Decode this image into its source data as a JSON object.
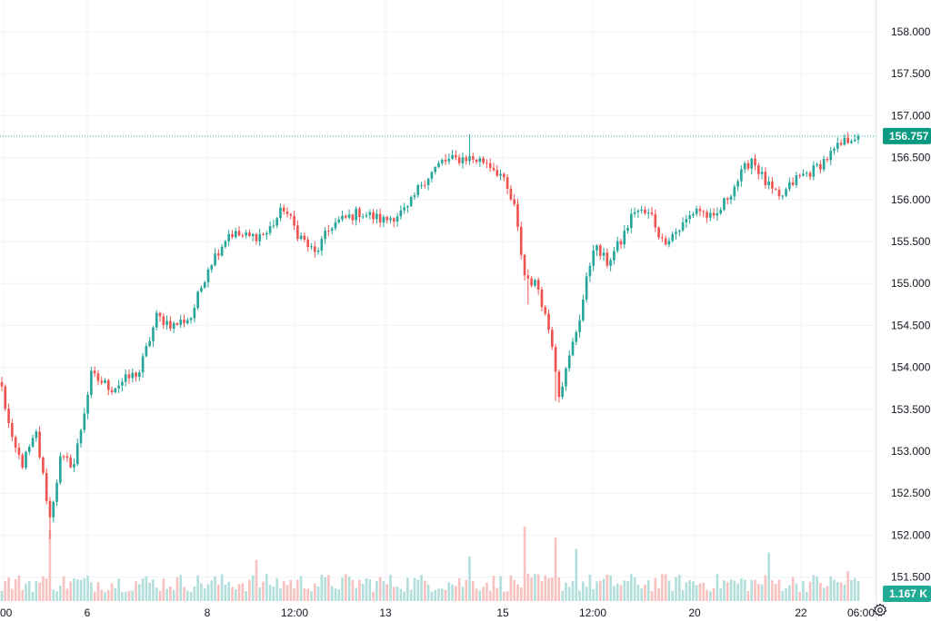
{
  "colors": {
    "up": "#26a69a",
    "down": "#ef5350",
    "up_volume": "#b2dfdb",
    "down_volume": "#f7c1bf",
    "grid": "#f0f3fa",
    "last_price_badge": "#089981",
    "last_price_line": "#22ab94",
    "text": "#131722"
  },
  "icons": {
    "settings": "gear-icon"
  },
  "chart_data": {
    "type": "candlestick",
    "title": "",
    "y_axis": {
      "position": "right",
      "ticks": [
        "158.000",
        "157.500",
        "157.000",
        "156.500",
        "156.000",
        "155.500",
        "155.000",
        "154.500",
        "154.000",
        "153.500",
        "153.000",
        "152.500",
        "152.000",
        "151.500"
      ],
      "range": [
        151.45,
        158.15
      ]
    },
    "x_axis": {
      "ticks": [
        "00",
        "6",
        "8",
        "12:00",
        "13",
        "15",
        "12:00",
        "20",
        "22",
        "06:00"
      ]
    },
    "last_price": "156.757",
    "volume_label": "1.167 K",
    "grid": true,
    "price_path_keypoints": [
      {
        "i": 0,
        "v": 153.75
      },
      {
        "i": 3,
        "v": 153.1
      },
      {
        "i": 6,
        "v": 152.85
      },
      {
        "i": 10,
        "v": 153.2
      },
      {
        "i": 14,
        "v": 152.2
      },
      {
        "i": 17,
        "v": 152.9
      },
      {
        "i": 21,
        "v": 152.85
      },
      {
        "i": 26,
        "v": 153.9
      },
      {
        "i": 32,
        "v": 153.75
      },
      {
        "i": 40,
        "v": 153.95
      },
      {
        "i": 45,
        "v": 154.6
      },
      {
        "i": 50,
        "v": 154.5
      },
      {
        "i": 55,
        "v": 154.6
      },
      {
        "i": 60,
        "v": 155.2
      },
      {
        "i": 66,
        "v": 155.6
      },
      {
        "i": 72,
        "v": 155.55
      },
      {
        "i": 77,
        "v": 155.6
      },
      {
        "i": 82,
        "v": 155.9
      },
      {
        "i": 86,
        "v": 155.6
      },
      {
        "i": 91,
        "v": 155.35
      },
      {
        "i": 96,
        "v": 155.7
      },
      {
        "i": 104,
        "v": 155.85
      },
      {
        "i": 111,
        "v": 155.75
      },
      {
        "i": 118,
        "v": 155.88
      },
      {
        "i": 122,
        "v": 156.2
      },
      {
        "i": 128,
        "v": 156.45
      },
      {
        "i": 135,
        "v": 156.5
      },
      {
        "i": 141,
        "v": 156.45
      },
      {
        "i": 145,
        "v": 156.3
      },
      {
        "i": 149,
        "v": 155.9
      },
      {
        "i": 152,
        "v": 155.1
      },
      {
        "i": 156,
        "v": 154.95
      },
      {
        "i": 160,
        "v": 154.3
      },
      {
        "i": 162,
        "v": 153.7
      },
      {
        "i": 164,
        "v": 153.95
      },
      {
        "i": 168,
        "v": 154.6
      },
      {
        "i": 172,
        "v": 155.45
      },
      {
        "i": 176,
        "v": 155.25
      },
      {
        "i": 180,
        "v": 155.5
      },
      {
        "i": 184,
        "v": 155.88
      },
      {
        "i": 189,
        "v": 155.8
      },
      {
        "i": 192,
        "v": 155.5
      },
      {
        "i": 197,
        "v": 155.65
      },
      {
        "i": 202,
        "v": 155.9
      },
      {
        "i": 207,
        "v": 155.75
      },
      {
        "i": 212,
        "v": 156.1
      },
      {
        "i": 218,
        "v": 156.5
      },
      {
        "i": 222,
        "v": 156.2
      },
      {
        "i": 226,
        "v": 156.0
      },
      {
        "i": 231,
        "v": 156.25
      },
      {
        "i": 236,
        "v": 156.35
      },
      {
        "i": 240,
        "v": 156.5
      },
      {
        "i": 244,
        "v": 156.65
      },
      {
        "i": 247,
        "v": 156.75
      },
      {
        "i": 249,
        "v": 156.757
      }
    ],
    "spikes": [
      {
        "i": 14,
        "low": 151.95
      },
      {
        "i": 136,
        "high": 156.78
      },
      {
        "i": 153,
        "low": 154.75
      },
      {
        "i": 161,
        "low": 153.6
      }
    ],
    "volume_spikes": [
      {
        "i": 14,
        "v": 0.95
      },
      {
        "i": 74,
        "v": 0.55
      },
      {
        "i": 136,
        "v": 0.6
      },
      {
        "i": 152,
        "v": 1.0
      },
      {
        "i": 161,
        "v": 0.85
      },
      {
        "i": 167,
        "v": 0.7
      },
      {
        "i": 223,
        "v": 0.65
      },
      {
        "i": 246,
        "v": 0.4
      }
    ]
  }
}
